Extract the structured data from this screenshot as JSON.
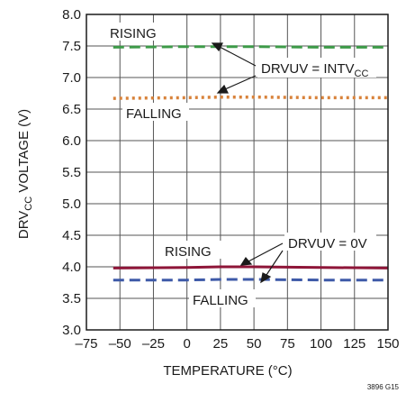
{
  "chart_data": {
    "type": "line",
    "x_tick_labels": [
      "–75",
      "–50",
      "–25",
      "0",
      "25",
      "50",
      "75",
      "100",
      "125",
      "150"
    ],
    "y_tick_labels": [
      "3.0",
      "3.5",
      "4.0",
      "4.5",
      "5.0",
      "5.5",
      "6.0",
      "6.5",
      "7.0",
      "7.5",
      "8.0"
    ],
    "xlim": [
      -75,
      150
    ],
    "ylim": [
      3.0,
      8.0
    ],
    "grid": true,
    "xlabel": "TEMPERATURE (°C)",
    "ylabel": {
      "prefix": "DRV",
      "sub": "CC",
      "suffix": " VOLTAGE (V)"
    },
    "series": [
      {
        "name": "RISING",
        "group": "DRVUV = INTVCC",
        "color": "#3d9a48",
        "dash": "dashed",
        "x": [
          -55,
          0,
          25,
          50,
          100,
          150
        ],
        "y": [
          7.48,
          7.49,
          7.49,
          7.49,
          7.48,
          7.48
        ]
      },
      {
        "name": "FALLING",
        "group": "DRVUV = INTVCC",
        "color": "#d8823a",
        "dash": "dotted",
        "x": [
          -55,
          0,
          25,
          50,
          100,
          150
        ],
        "y": [
          6.67,
          6.68,
          6.69,
          6.69,
          6.68,
          6.68
        ]
      },
      {
        "name": "RISING",
        "group": "DRVUV = 0V",
        "color": "#8e1538",
        "dash": "solid",
        "x": [
          -55,
          0,
          25,
          50,
          100,
          150
        ],
        "y": [
          3.98,
          3.99,
          4.0,
          4.0,
          3.99,
          3.98
        ]
      },
      {
        "name": "FALLING",
        "group": "DRVUV = 0V",
        "color": "#3e5aa8",
        "dash": "dashed",
        "x": [
          -55,
          0,
          25,
          50,
          100,
          150
        ],
        "y": [
          3.79,
          3.79,
          3.8,
          3.8,
          3.79,
          3.79
        ]
      }
    ],
    "annotations": {
      "top_rising": "RISING",
      "top_falling": "FALLING",
      "top_group": {
        "prefix": "DRVUV = INTV",
        "sub": "CC"
      },
      "bottom_rising": "RISING",
      "bottom_falling": "FALLING",
      "bottom_group": "DRVUV = 0V"
    },
    "footer_code": "3896 G15"
  }
}
